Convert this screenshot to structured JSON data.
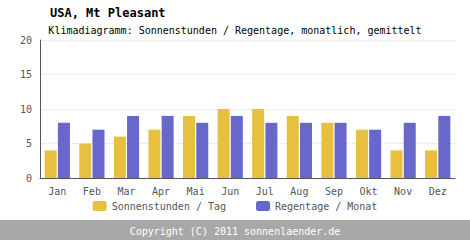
{
  "chart_data": {
    "type": "bar",
    "title": "USA, Mt Pleasant",
    "subtitle": "Klimadiagramm: Sonnenstunden / Regentage, monatlich, gemittelt",
    "categories": [
      "Jan",
      "Feb",
      "Mar",
      "Apr",
      "Mai",
      "Jun",
      "Jul",
      "Aug",
      "Sep",
      "Okt",
      "Nov",
      "Dez"
    ],
    "series": [
      {
        "name": "Sonnenstunden / Tag",
        "color": "#e8c040",
        "values": [
          4,
          5,
          6,
          7,
          9,
          10,
          10,
          9,
          8,
          7,
          4,
          4
        ]
      },
      {
        "name": "Regentage / Monat",
        "color": "#6868cc",
        "values": [
          8,
          7,
          9,
          9,
          8,
          9,
          8,
          8,
          8,
          7,
          8,
          9
        ]
      }
    ],
    "ylim": [
      0,
      20
    ],
    "yticks": [
      0,
      5,
      10,
      15,
      20
    ],
    "grid": true,
    "legend": "bottom",
    "annotations": [
      "Copyright (C) 2011 sonnenlaender.de"
    ]
  }
}
